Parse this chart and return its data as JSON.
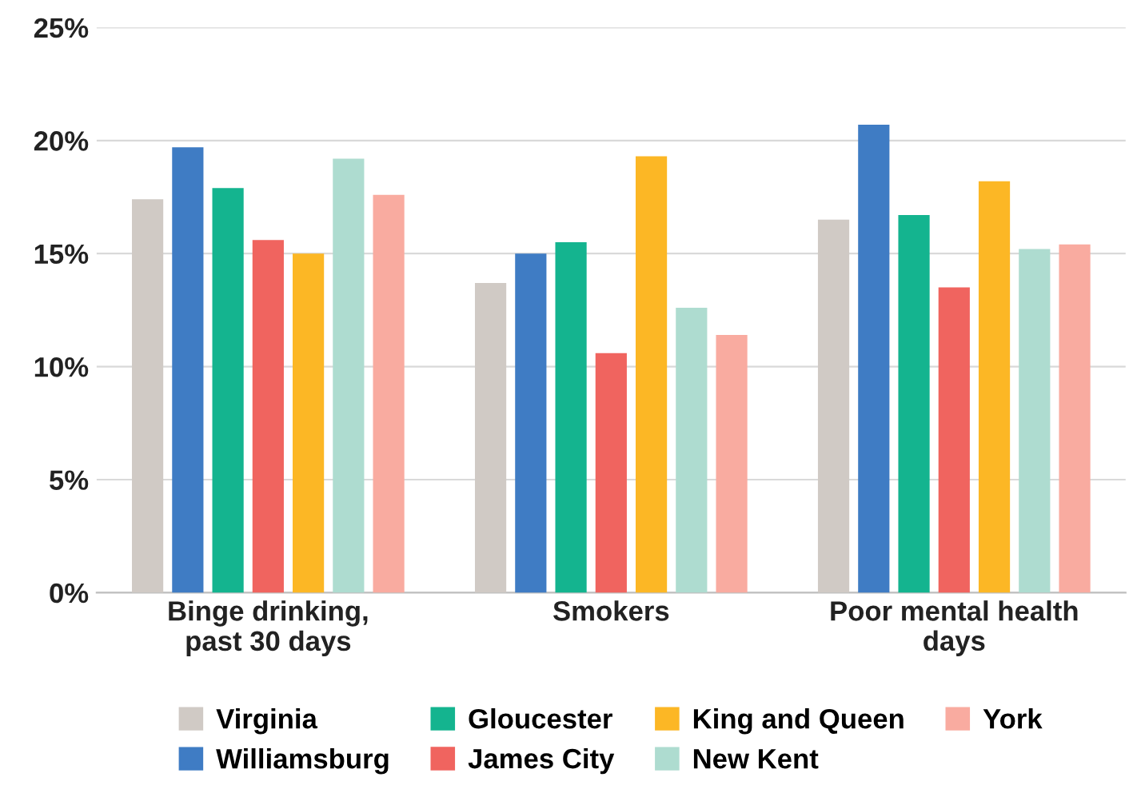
{
  "chart_data": {
    "type": "bar",
    "categories": [
      "Binge drinking,\npast 30 days",
      "Smokers",
      "Poor mental health\ndays"
    ],
    "series": [
      {
        "name": "Virginia",
        "color": "#d0cac5",
        "values": [
          17.4,
          13.7,
          16.5
        ]
      },
      {
        "name": "Williamsburg",
        "color": "#3f7cc4",
        "values": [
          19.7,
          15.0,
          20.7
        ]
      },
      {
        "name": "Gloucester",
        "color": "#14b48f",
        "values": [
          17.9,
          15.5,
          16.7
        ]
      },
      {
        "name": "James City",
        "color": "#f0645f",
        "values": [
          15.6,
          10.6,
          13.5
        ]
      },
      {
        "name": "King and Queen",
        "color": "#fcb725",
        "values": [
          15.0,
          19.3,
          18.2
        ]
      },
      {
        "name": "New Kent",
        "color": "#aedcd0",
        "values": [
          19.2,
          12.6,
          15.2
        ]
      },
      {
        "name": "York",
        "color": "#f9aba0",
        "values": [
          17.6,
          11.4,
          15.4
        ]
      }
    ],
    "ylim": [
      0,
      25
    ],
    "yticks": [
      {
        "value": 0,
        "label": "0%"
      },
      {
        "value": 5,
        "label": "5%"
      },
      {
        "value": 10,
        "label": "10%"
      },
      {
        "value": 15,
        "label": "15%"
      },
      {
        "value": 20,
        "label": "20%"
      },
      {
        "value": 25,
        "label": "25%"
      }
    ],
    "grid": "y",
    "legend": "bottom"
  }
}
